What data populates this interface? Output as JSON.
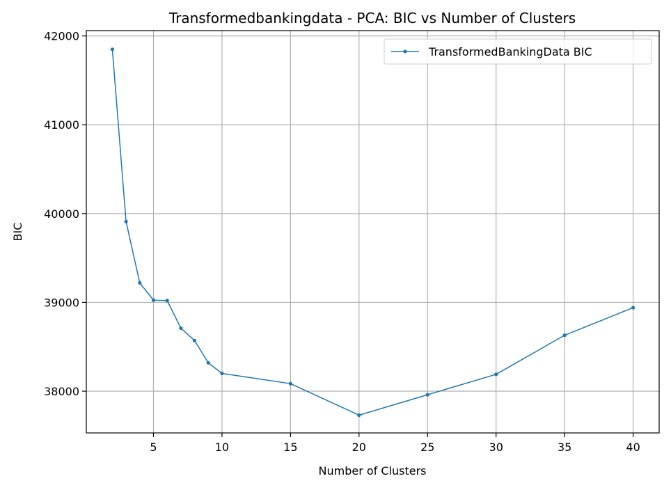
{
  "chart_data": {
    "type": "line",
    "title": "Transformedbankingdata - PCA: BIC vs Number of Clusters",
    "xlabel": "Number of Clusters",
    "ylabel": "BIC",
    "xlim": [
      0.1,
      41.9
    ],
    "ylim": [
      37530,
      42060
    ],
    "x_ticks": [
      5,
      10,
      15,
      20,
      25,
      30,
      35,
      40
    ],
    "y_ticks": [
      38000,
      39000,
      40000,
      41000,
      42000
    ],
    "grid": true,
    "legend_position": "top-right",
    "series": [
      {
        "name": "TransformedBankingData BIC",
        "color": "#1f77b4",
        "marker": "circle",
        "x": [
          2,
          3,
          4,
          5,
          6,
          7,
          8,
          9,
          10,
          15,
          20,
          25,
          30,
          35,
          40
        ],
        "y": [
          41850,
          39910,
          39220,
          39025,
          39020,
          38710,
          38570,
          38320,
          38200,
          38085,
          37730,
          37960,
          38190,
          38630,
          38940
        ]
      }
    ]
  }
}
